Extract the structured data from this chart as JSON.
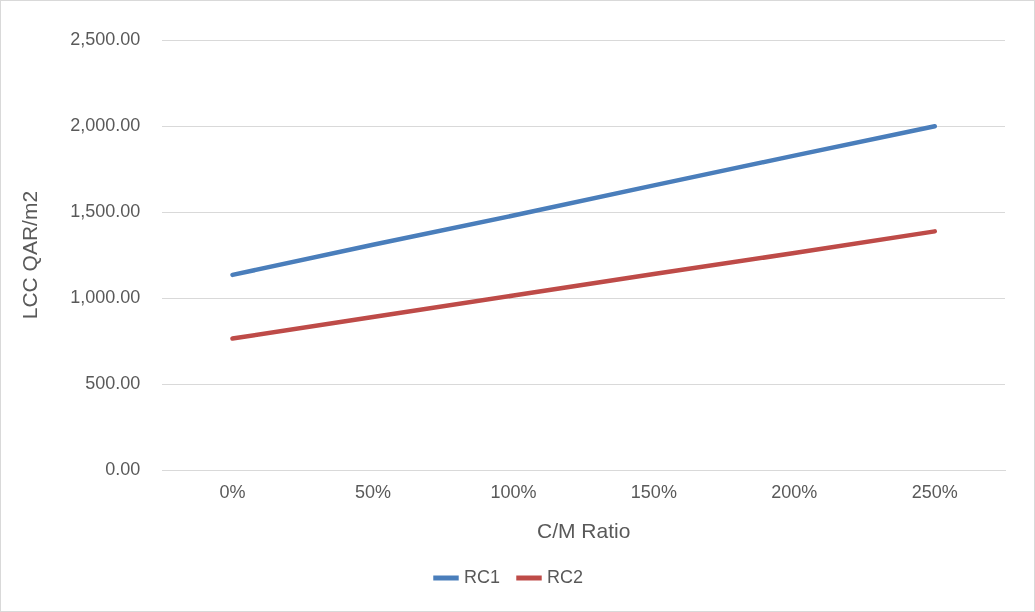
{
  "chart_data": {
    "type": "line",
    "xlabel": "C/M Ratio",
    "ylabel": "LCC QAR/m2",
    "categories": [
      "0%",
      "50%",
      "100%",
      "150%",
      "200%",
      "250%"
    ],
    "series": [
      {
        "name": "RC1",
        "color": "#4a7ebb",
        "values": [
          1135,
          1310,
          1480,
          1655,
          1828,
          1999
        ]
      },
      {
        "name": "RC2",
        "color": "#be4b48",
        "values": [
          765,
          890,
          1015,
          1140,
          1262,
          1388
        ]
      }
    ],
    "ylim": [
      0,
      2500
    ],
    "yticks": [
      {
        "value": 0,
        "label": "0.00"
      },
      {
        "value": 500,
        "label": "500.00"
      },
      {
        "value": 1000,
        "label": "1,000.00"
      },
      {
        "value": 1500,
        "label": "1,500.00"
      },
      {
        "value": 2000,
        "label": "2,000.00"
      },
      {
        "value": 2500,
        "label": "2,500.00"
      }
    ],
    "grid": "y",
    "legend": "bottom",
    "marker": "none",
    "line_style": "solid"
  }
}
